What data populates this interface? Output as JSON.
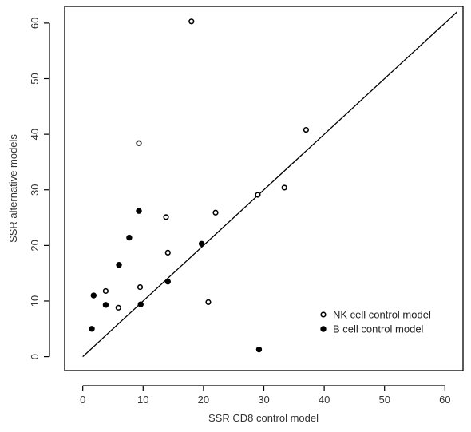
{
  "chart_data": {
    "type": "scatter",
    "xlabel": "SSR CD8 control model",
    "ylabel": "SSR alternative models",
    "xlim": [
      -3,
      63
    ],
    "ylim": [
      -2.5,
      63
    ],
    "x_ticks": [
      0,
      10,
      20,
      30,
      40,
      50,
      60
    ],
    "y_ticks": [
      0,
      10,
      20,
      30,
      40,
      50,
      60
    ],
    "grid": false,
    "legend_position": "bottom-right",
    "reference_line": {
      "x": [
        0,
        62
      ],
      "y": [
        0,
        62
      ]
    },
    "series": [
      {
        "name": "NK cell control model",
        "marker": "open-circle",
        "color": "#000000",
        "points": [
          [
            18.0,
            60.3
          ],
          [
            9.3,
            38.4
          ],
          [
            37.0,
            40.8
          ],
          [
            33.4,
            30.4
          ],
          [
            29.0,
            29.1
          ],
          [
            22.0,
            25.9
          ],
          [
            13.8,
            25.1
          ],
          [
            14.1,
            18.7
          ],
          [
            9.5,
            12.5
          ],
          [
            3.8,
            11.8
          ],
          [
            5.9,
            8.8
          ],
          [
            20.8,
            9.8
          ]
        ]
      },
      {
        "name": "B cell control model",
        "marker": "filled-circle",
        "color": "#000000",
        "points": [
          [
            9.3,
            26.2
          ],
          [
            7.7,
            21.4
          ],
          [
            19.7,
            20.3
          ],
          [
            6.0,
            16.5
          ],
          [
            14.1,
            13.5
          ],
          [
            1.8,
            11.0
          ],
          [
            9.6,
            9.4
          ],
          [
            3.8,
            9.3
          ],
          [
            1.5,
            5.0
          ],
          [
            29.2,
            1.3
          ]
        ]
      }
    ]
  }
}
